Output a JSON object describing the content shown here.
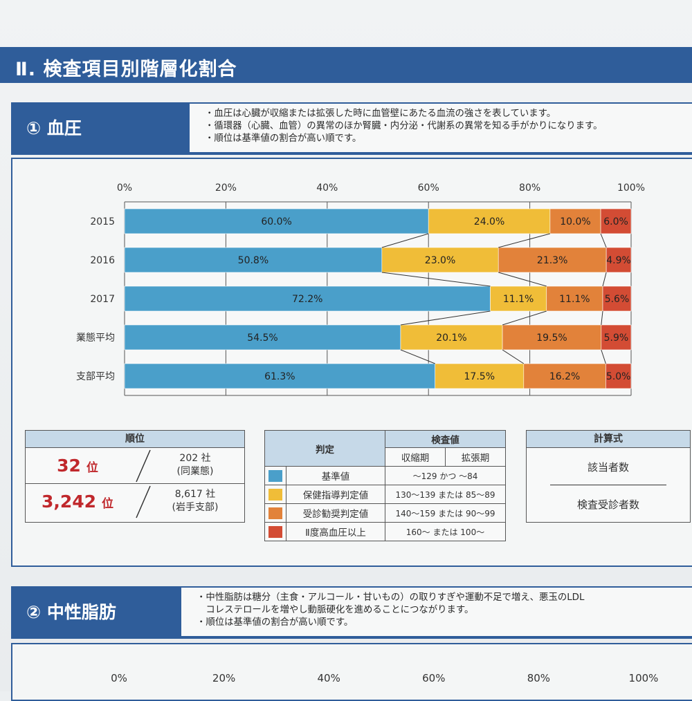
{
  "section_title": "Ⅱ. 検査項目別階層化割合",
  "bp": {
    "heading": "① 血圧",
    "notes": [
      "・血圧は心臓が収縮または拡張した時に血管壁にあたる血流の強さを表しています。",
      "・循環器（心臓、血管）の異常のほか腎臓・内分泌・代謝系の異常を知る手がかりになります。",
      "・順位は基準値の割合が高い順です。"
    ]
  },
  "chart_data": [
    {
      "type": "bar",
      "orientation": "horizontal",
      "stacked": true,
      "percent_axis": true,
      "x_ticks": [
        "0%",
        "20%",
        "40%",
        "60%",
        "80%",
        "100%"
      ],
      "xlim": [
        0,
        100
      ],
      "categories": [
        "2015",
        "2016",
        "2017",
        "業態平均",
        "支部平均"
      ],
      "series": [
        {
          "color": "#4a9fca",
          "values": [
            60.0,
            50.8,
            72.2,
            54.5,
            61.3
          ],
          "labels": [
            "60.0%",
            "50.8%",
            "72.2%",
            "54.5%",
            "61.3%"
          ]
        },
        {
          "color": "#f0bd38",
          "values": [
            24.0,
            23.0,
            11.1,
            20.1,
            17.5
          ],
          "labels": [
            "24.0%",
            "23.0%",
            "11.1%",
            "20.1%",
            "17.5%"
          ]
        },
        {
          "color": "#e2823a",
          "values": [
            10.0,
            21.3,
            11.1,
            19.5,
            16.2
          ],
          "labels": [
            "10.0%",
            "21.3%",
            "11.1%",
            "19.5%",
            "16.2%"
          ]
        },
        {
          "color": "#d34c34",
          "values": [
            6.0,
            4.9,
            5.6,
            5.9,
            5.0
          ],
          "labels": [
            "6.0%",
            "4.9%",
            "5.6%",
            "5.9%",
            "5.0%"
          ]
        }
      ],
      "grid": true
    },
    {
      "type": "bar",
      "orientation": "horizontal",
      "x_ticks": [
        "0%",
        "20%",
        "40%",
        "60%",
        "80%",
        "100%"
      ],
      "xlim": [
        0,
        100
      ]
    }
  ],
  "rank": {
    "header": "順位",
    "rows": [
      {
        "rank": "32",
        "unit": "位",
        "total": "202 社",
        "group": "(同業態)"
      },
      {
        "rank": "3,242",
        "unit": "位",
        "total": "8,617 社",
        "group": "(岩手支部)"
      }
    ]
  },
  "judgement": {
    "col_judge": "判定",
    "col_value": "検査値",
    "col_sys": "収縮期",
    "col_dia": "拡張期",
    "rows": [
      {
        "label": "基準値",
        "value": "～129 かつ ～84",
        "color": "#4a9fca"
      },
      {
        "label": "保健指導判定値",
        "value": "130～139 または 85～89",
        "color": "#f0bd38"
      },
      {
        "label": "受診勧奨判定値",
        "value": "140～159 または 90～99",
        "color": "#e2823a"
      },
      {
        "label": "Ⅱ度高血圧以上",
        "value": "160～ または 100～",
        "color": "#d34c34"
      }
    ]
  },
  "formula": {
    "header": "計算式",
    "numerator": "該当者数",
    "denominator": "検査受診者数"
  },
  "tg": {
    "heading": "② 中性脂肪",
    "notes": [
      "・中性脂肪は糖分（主食・アルコール・甘いもの）の取りすぎや運動不足で増え、悪玉のLDL",
      "　コレステロールを増やし動脈硬化を進めることにつながります。",
      "・順位は基準値の割合が高い順です。"
    ]
  }
}
